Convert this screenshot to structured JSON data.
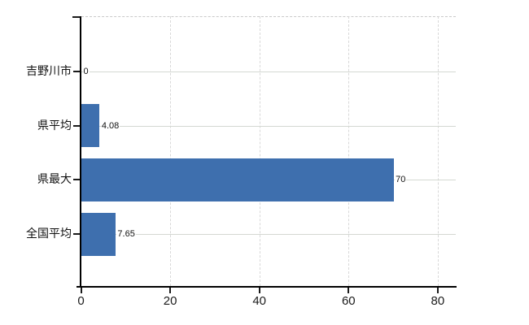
{
  "chart_data": {
    "type": "bar",
    "orientation": "horizontal",
    "title": "",
    "xlabel": "",
    "ylabel": "",
    "categories": [
      "吉野川市",
      "県平均",
      "県最大",
      "全国平均"
    ],
    "values": [
      0,
      4.08,
      70,
      7.65
    ],
    "value_labels": [
      "0",
      "4.08",
      "70",
      "7.65"
    ],
    "x_ticks": [
      0,
      20,
      40,
      60,
      80
    ],
    "x_tick_labels": [
      "0",
      "20",
      "40",
      "60",
      "80"
    ],
    "xlim": [
      0,
      80
    ],
    "grid": true,
    "legend_position": "none",
    "colors": {
      "bar": "#3e6fae",
      "axis": "#000000",
      "gridline_horizontal": "#d4d8d2",
      "gridline_vertical": "#d8d8d8",
      "top_border": "#c9c9c9",
      "text": "#111111",
      "background": "#ffffff"
    }
  }
}
